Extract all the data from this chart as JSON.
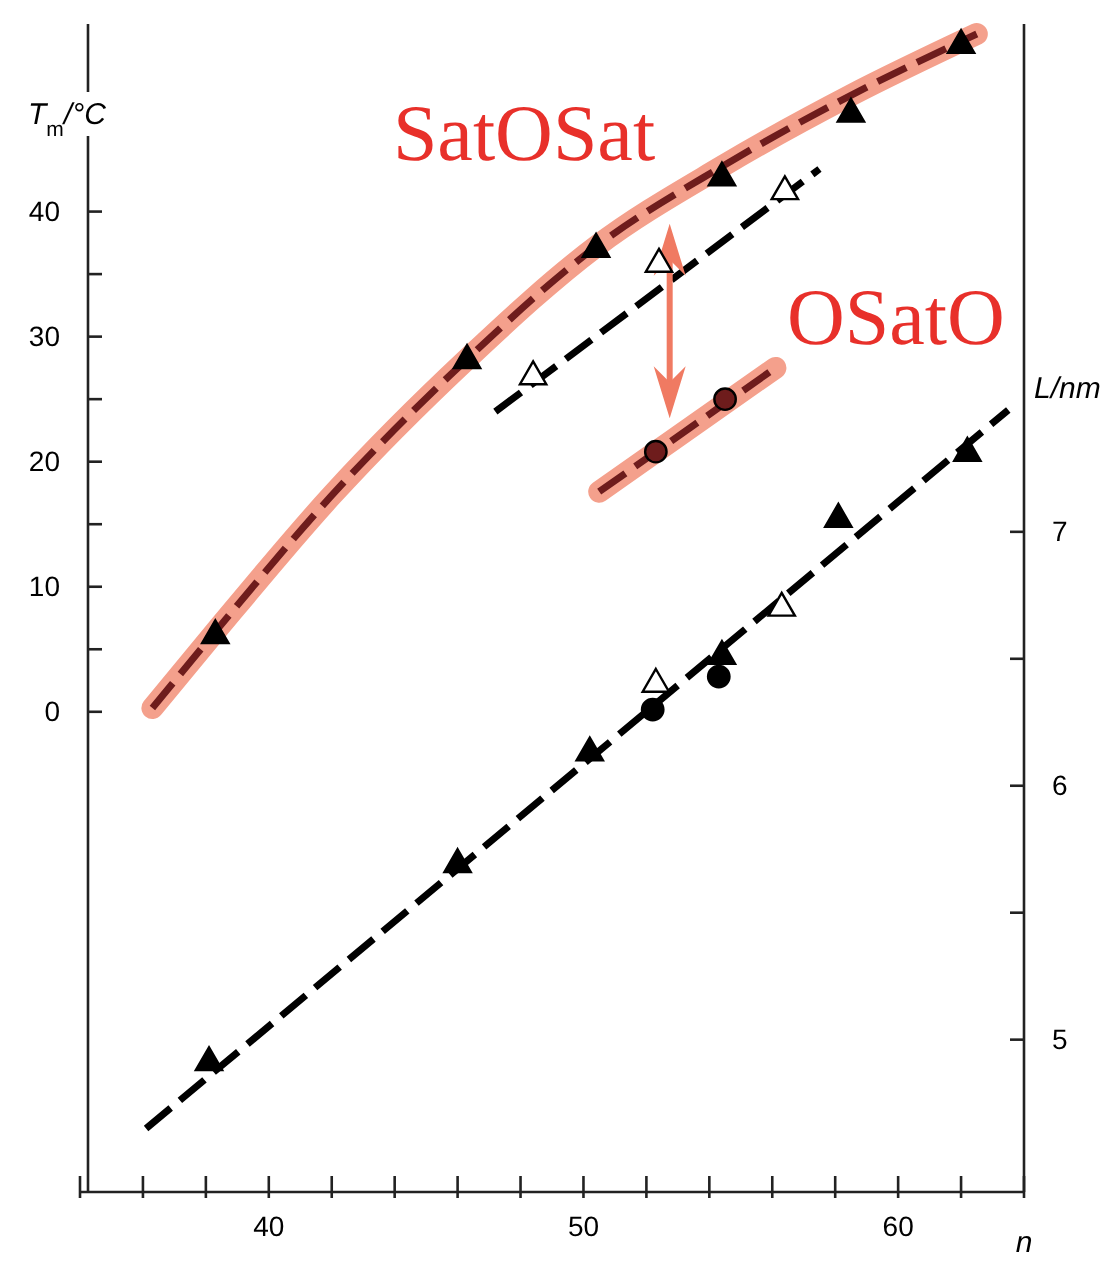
{
  "chart_data": {
    "type": "scatter",
    "xlabel": "n",
    "ylabel": "T$_{m}$/°C",
    "y2label": "L/nm",
    "xlim": [
      34,
      64
    ],
    "xticks": [
      {
        "value": 34,
        "label": null
      },
      {
        "value": 36,
        "label": null
      },
      {
        "value": 38,
        "label": null
      },
      40,
      {
        "value": 42,
        "label": null
      },
      {
        "value": 44,
        "label": null
      },
      {
        "value": 46,
        "label": null
      },
      {
        "value": 48,
        "label": null
      },
      50,
      {
        "value": 52,
        "label": null
      },
      {
        "value": 54,
        "label": null
      },
      {
        "value": 56,
        "label": null
      },
      {
        "value": 58,
        "label": null
      },
      60,
      {
        "value": 62,
        "label": null
      },
      {
        "value": 64,
        "label": null
      }
    ],
    "ylim": [
      -38.4,
      55
    ],
    "yticks": [
      0,
      {
        "value": 5,
        "label": null
      },
      10,
      {
        "value": 15,
        "label": null
      },
      20,
      {
        "value": 25,
        "label": null
      },
      30,
      {
        "value": 35,
        "label": null
      },
      40
    ],
    "y2lim": [
      4.4,
      9.0
    ],
    "y2ticks": [
      5,
      {
        "value": 5.5,
        "label": null
      },
      6,
      {
        "value": 6.5,
        "label": null
      },
      7
    ],
    "series": [
      {
        "type": "line",
        "name": "SatOSat",
        "color": "#6e1c1c",
        "x": [
          36.3,
          38.3,
          42,
          46.3,
          50.4,
          54.4,
          58.5,
          62.5
        ],
        "values": [
          0.3,
          6.4,
          17.3,
          28.2,
          37.2,
          43.6,
          49.3,
          54.2
        ],
        "line_style": "dashed",
        "marker": "none"
      },
      {
        "type": "scatter",
        "color": "#000000",
        "x": [
          38.3,
          46.3,
          50.4,
          54.4,
          58.5,
          62.0
        ],
        "values": [
          6.1,
          28.1,
          37.0,
          42.7,
          47.8,
          53.3
        ],
        "marker": "triangle"
      },
      {
        "type": "line",
        "color": "#000000",
        "x": [
          47.2,
          57.5
        ],
        "values": [
          24.0,
          43.4
        ],
        "line_style": "dashed",
        "marker": "none"
      },
      {
        "type": "scatter",
        "color": "#ffffff",
        "x": [
          48.4,
          52.4,
          56.4
        ],
        "values": [
          26.8,
          35.8,
          41.6
        ],
        "marker": "triangle"
      },
      {
        "type": "line",
        "name": "OSatO",
        "color": "#6e1c1c",
        "x": [
          50.5,
          56.1
        ],
        "values": [
          17.6,
          27.5
        ],
        "line_style": "dashed",
        "marker": "none"
      },
      {
        "type": "scatter",
        "color": "#6e1c1c",
        "x": [
          52.3,
          54.5
        ],
        "values": [
          20.8,
          25.0
        ],
        "marker": "circle"
      },
      {
        "type": "line",
        "axis": "y2",
        "color": "#000000",
        "x": [
          36.1,
          63.5
        ],
        "values": [
          4.65,
          7.48
        ],
        "line_style": "dashed",
        "marker": "none"
      },
      {
        "type": "scatter",
        "axis": "y2",
        "color": "#000000",
        "x": [
          38.1,
          46.0,
          50.2,
          54.4,
          58.1,
          62.2
        ],
        "values": [
          4.91,
          5.69,
          6.13,
          6.51,
          7.05,
          7.31
        ],
        "marker": "triangle"
      },
      {
        "type": "scatter",
        "axis": "y2",
        "color": "#ffffff",
        "x": [
          52.3,
          56.3
        ],
        "values": [
          6.4,
          6.7
        ],
        "marker": "triangle"
      },
      {
        "type": "scatter",
        "axis": "y2",
        "color": "#000000",
        "x": [
          52.2,
          54.3
        ],
        "values": [
          6.3,
          6.43
        ],
        "marker": "circle"
      }
    ]
  }
}
